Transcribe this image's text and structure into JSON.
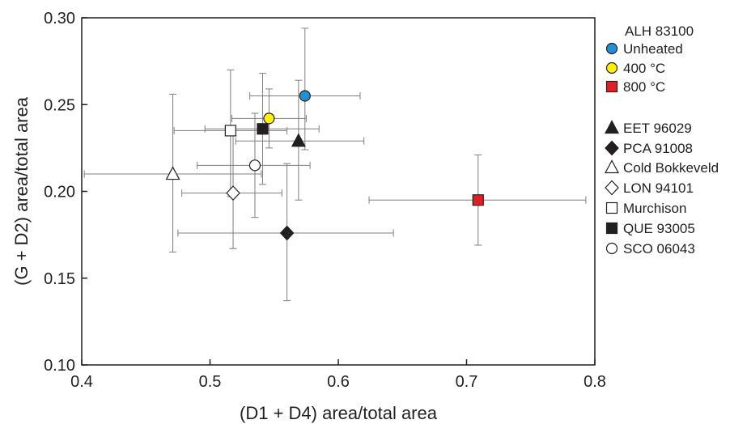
{
  "chart_data": {
    "type": "scatter",
    "xlabel": "(D1 + D4) area/total area",
    "ylabel": "(G + D2) area/total area",
    "xlim": [
      0.4,
      0.8
    ],
    "ylim": [
      0.1,
      0.3
    ],
    "x_ticks": [
      "0.4",
      "0.5",
      "0.6",
      "0.7",
      "0.8"
    ],
    "y_ticks": [
      "0.10",
      "0.15",
      "0.20",
      "0.25",
      "0.30"
    ],
    "grid": false,
    "legend_placement": "right",
    "legend_group_title": "ALH 83100",
    "series": [
      {
        "name": "Unheated",
        "marker": "circle",
        "fill": "#1e90d6",
        "x": 0.574,
        "y": 0.255,
        "x_err": [
          0.531,
          0.617
        ],
        "y_err": [
          0.224,
          0.294
        ]
      },
      {
        "name": "400 °C",
        "marker": "circle",
        "fill": "#fff200",
        "x": 0.546,
        "y": 0.242,
        "x_err": [
          0.517,
          0.575
        ],
        "y_err": [
          0.225,
          0.259
        ]
      },
      {
        "name": "800 °C",
        "marker": "square",
        "fill": "#e31f26",
        "x": 0.709,
        "y": 0.195,
        "x_err": [
          0.624,
          0.793
        ],
        "y_err": [
          0.169,
          0.221
        ]
      },
      {
        "name": "EET 96029",
        "marker": "triangle",
        "fill": "#231f20",
        "x": 0.569,
        "y": 0.229,
        "x_err": [
          0.52,
          0.62
        ],
        "y_err": [
          0.195,
          0.264
        ]
      },
      {
        "name": "PCA 91008",
        "marker": "diamond",
        "fill": "#231f20",
        "x": 0.56,
        "y": 0.176,
        "x_err": [
          0.475,
          0.643
        ],
        "y_err": [
          0.137,
          0.216
        ]
      },
      {
        "name": "Cold Bokkeveld",
        "marker": "triangle",
        "fill": "#ffffff",
        "x": 0.471,
        "y": 0.21,
        "x_err": [
          0.402,
          0.54
        ],
        "y_err": [
          0.165,
          0.256
        ]
      },
      {
        "name": "LON 94101",
        "marker": "diamond",
        "fill": "#ffffff",
        "x": 0.518,
        "y": 0.199,
        "x_err": [
          0.478,
          0.556
        ],
        "y_err": [
          0.167,
          0.232
        ]
      },
      {
        "name": "Murchison",
        "marker": "square",
        "fill": "#ffffff",
        "x": 0.516,
        "y": 0.235,
        "x_err": [
          0.472,
          0.56
        ],
        "y_err": [
          0.197,
          0.27
        ]
      },
      {
        "name": "QUE 93005",
        "marker": "square",
        "fill": "#231f20",
        "x": 0.541,
        "y": 0.236,
        "x_err": [
          0.496,
          0.585
        ],
        "y_err": [
          0.204,
          0.268
        ]
      },
      {
        "name": "SCO 06043",
        "marker": "circle",
        "fill": "#ffffff",
        "x": 0.535,
        "y": 0.215,
        "x_err": [
          0.49,
          0.578
        ],
        "y_err": [
          0.185,
          0.245
        ]
      }
    ]
  },
  "colors": {
    "ink": "#231f20",
    "errorbar": "#7f7f7f",
    "unheated": "#1e90d6",
    "heated_400": "#fff200",
    "heated_800": "#e31f26"
  }
}
